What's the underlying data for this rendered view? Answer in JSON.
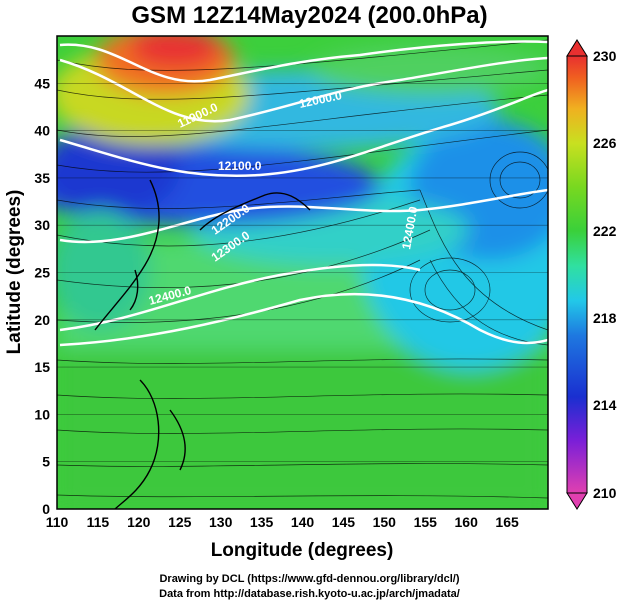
{
  "title": "GSM 12Z14May2024 (200.0hPa)",
  "axes": {
    "xlabel": "Longitude (degrees)",
    "ylabel": "Latitude  (degrees)",
    "x_ticks": [
      "110",
      "115",
      "120",
      "125",
      "130",
      "135",
      "140",
      "145",
      "150",
      "155",
      "160",
      "165"
    ],
    "y_ticks": [
      "0",
      "5",
      "10",
      "15",
      "20",
      "25",
      "30",
      "35",
      "40",
      "45"
    ],
    "xlim": [
      110,
      170
    ],
    "ylim": [
      0,
      50
    ]
  },
  "colorbar": {
    "ticks": [
      "230",
      "226",
      "222",
      "218",
      "214",
      "210"
    ],
    "range": [
      210,
      230
    ],
    "colors": [
      "#e040b0",
      "#7a1fd8",
      "#1a2fd0",
      "#1e78e0",
      "#22c8e8",
      "#30e0a0",
      "#3ad03a",
      "#78d820",
      "#c8e020",
      "#f0b020",
      "#f06020",
      "#e83030"
    ]
  },
  "contour_labels": [
    "11900.0",
    "12000.0",
    "12100.0",
    "12200.0",
    "12300.0",
    "12400.0",
    "12400.0"
  ],
  "credits": {
    "line1": "Drawing by DCL (https://www.gfd-dennou.org/library/dcl/)",
    "line2": "Data from http://database.rish.kyoto-u.ac.jp/arch/jmadata/"
  },
  "chart_data": {
    "type": "heatmap",
    "variable": "temperature (K) at 200.0hPa with geopotential height contours and wind streamlines",
    "xlim": [
      110,
      170
    ],
    "ylim": [
      0,
      50
    ],
    "color_range": [
      210,
      230
    ],
    "contour_levels": [
      11900,
      12000,
      12100,
      12200,
      12300,
      12400
    ],
    "regions": [
      {
        "area": "northwest corner (115-128E, 42-50N)",
        "value": 229
      },
      {
        "area": "band 110-150E, 35-40N",
        "value": 215
      },
      {
        "area": "east of 150E, 25-40N",
        "value": 219
      },
      {
        "area": "tropics 0-20N",
        "value": 223
      }
    ]
  }
}
